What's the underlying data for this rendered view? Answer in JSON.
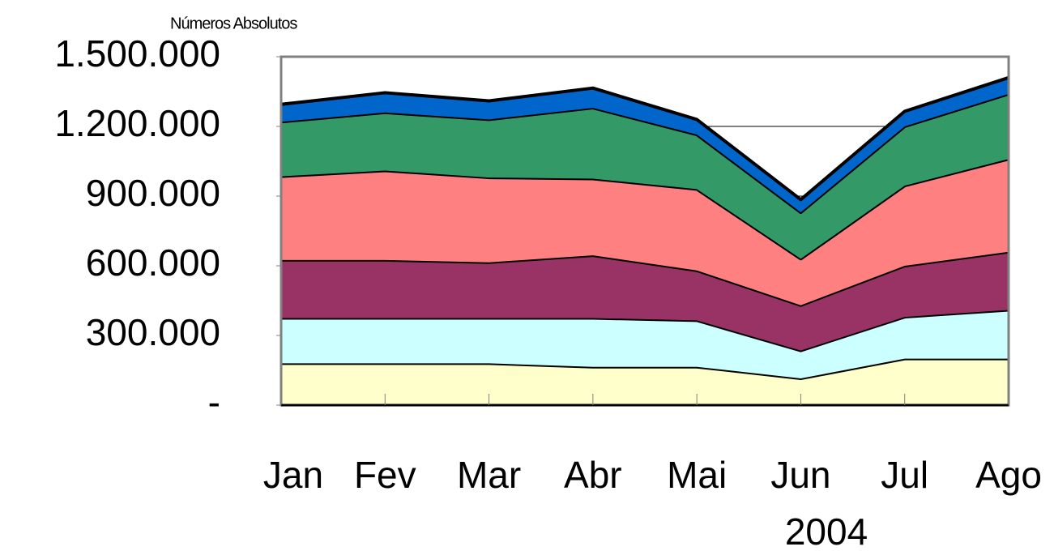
{
  "chart_data": {
    "type": "area",
    "stacked": true,
    "title": "Números Absolutos",
    "x_label": "2004",
    "categories": [
      "Jan",
      "Fev",
      "Mar",
      "Abr",
      "Mai",
      "Jun",
      "Jul",
      "Ago"
    ],
    "series": [
      {
        "color": "#ffffcc",
        "values": [
          180000,
          180000,
          180000,
          165000,
          165000,
          115000,
          200000,
          200000
        ]
      },
      {
        "color": "#ccffff",
        "values": [
          195000,
          195000,
          195000,
          210000,
          200000,
          120000,
          180000,
          210000
        ]
      },
      {
        "color": "#993366",
        "values": [
          250000,
          250000,
          240000,
          270000,
          215000,
          195000,
          220000,
          250000
        ]
      },
      {
        "color": "#ff8080",
        "values": [
          360000,
          385000,
          365000,
          330000,
          350000,
          200000,
          345000,
          400000
        ]
      },
      {
        "color": "#339966",
        "values": [
          235000,
          250000,
          250000,
          305000,
          235000,
          200000,
          255000,
          280000
        ]
      },
      {
        "color": "#0066cc",
        "values": [
          75000,
          85000,
          80000,
          85000,
          65000,
          55000,
          65000,
          70000
        ]
      }
    ],
    "ylim": [
      0,
      1500000
    ],
    "yticks": [
      {
        "value": 0,
        "label": "-"
      },
      {
        "value": 300000,
        "label": "300.000"
      },
      {
        "value": 600000,
        "label": "600.000"
      },
      {
        "value": 900000,
        "label": "900.000"
      },
      {
        "value": 1200000,
        "label": "1.200.000"
      },
      {
        "value": 1500000,
        "label": "1.500.000"
      }
    ],
    "grid": true
  }
}
